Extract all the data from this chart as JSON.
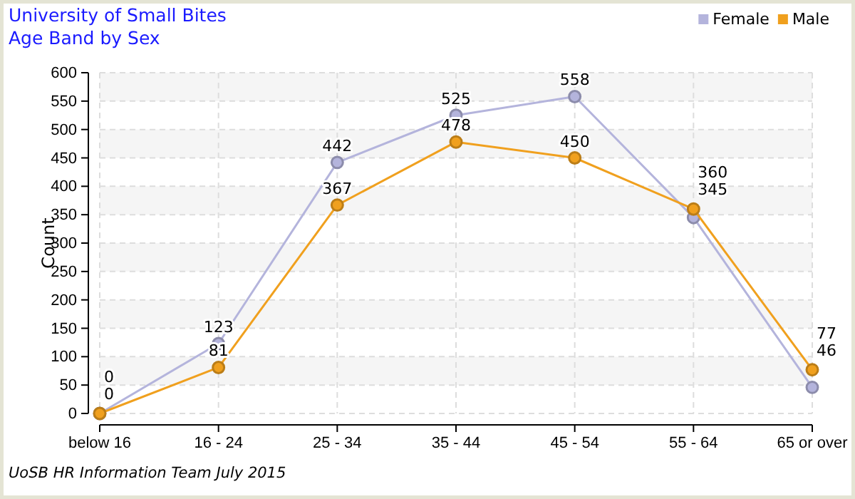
{
  "chart_data": {
    "type": "line",
    "title": "University of Small Bites",
    "subtitle": "Age Band by Sex",
    "ylabel": "Count",
    "categories": [
      "below 16",
      "16 - 24",
      "25 - 34",
      "35 - 44",
      "45 - 54",
      "55 - 64",
      "65 or over"
    ],
    "series": [
      {
        "name": "Female",
        "color": "#b4b4dc",
        "values": [
          0,
          123,
          442,
          525,
          558,
          345,
          46
        ]
      },
      {
        "name": "Male",
        "color": "#f0a01e",
        "values": [
          0,
          81,
          367,
          478,
          450,
          360,
          77
        ]
      }
    ],
    "ylim": [
      0,
      600
    ],
    "yticks": [
      0,
      50,
      100,
      150,
      200,
      250,
      300,
      350,
      400,
      450,
      500,
      550,
      600
    ],
    "grid": true,
    "legend": "top right",
    "marker": "circle",
    "line_style": "solid",
    "data_labels": true,
    "annotations": [
      "UoSB HR Information Team July 2015"
    ]
  }
}
